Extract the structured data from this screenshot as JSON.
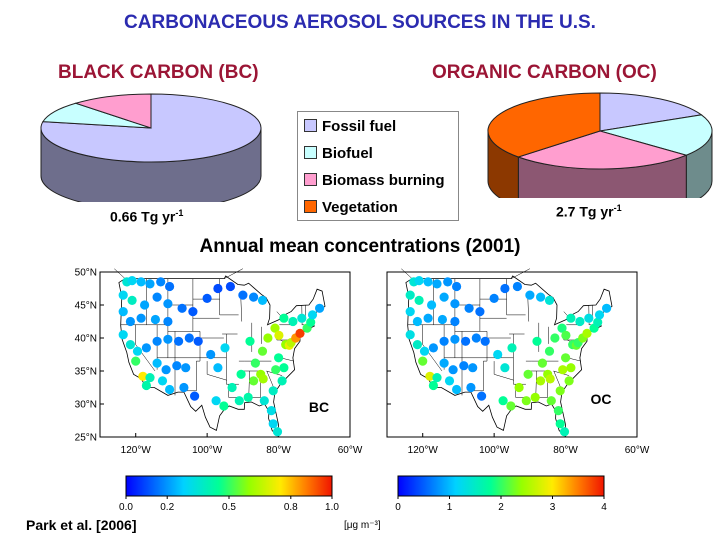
{
  "title": "CARBONACEOUS AEROSOL SOURCES IN THE U.S.",
  "bc": {
    "title": "BLACK CARBON (BC)",
    "total_value": "0.66 Tg yr",
    "total_exp": "-1"
  },
  "oc": {
    "title": "ORGANIC CARBON (OC)",
    "total_value": "2.7 Tg yr",
    "total_exp": "-1"
  },
  "legend": [
    {
      "label": "Fossil fuel",
      "color": "#c8c8ff"
    },
    {
      "label": "Biofuel",
      "color": "#c8ffff"
    },
    {
      "label": "Biomass burning",
      "color": "#ff9ecf"
    },
    {
      "label": "Vegetation",
      "color": "#ff6600"
    }
  ],
  "concentration_title": "Annual mean concentrations (2001)",
  "maps": [
    {
      "label": "BC",
      "lat_ticks": [
        "50°N",
        "45°N",
        "40°N",
        "35°N",
        "30°N",
        "25°N"
      ],
      "lon_ticks": [
        "120°W",
        "100°W",
        "80°W",
        "60°W"
      ]
    },
    {
      "label": "OC",
      "lat_ticks": [],
      "lon_ticks": [
        "120°W",
        "100°W",
        "80°W",
        "60°W"
      ]
    }
  ],
  "colorbars": [
    {
      "ticks": [
        "0.0",
        "0.2",
        "0.5",
        "0.8",
        "1.0"
      ]
    },
    {
      "ticks": [
        "0",
        "1",
        "2",
        "3",
        "4"
      ]
    }
  ],
  "unit_label": "[μg m⁻³]",
  "citation": "Park et al. [2006]",
  "chart_data": [
    {
      "type": "pie",
      "title": "BLACK CARBON (BC)",
      "categories": [
        "Fossil fuel",
        "Biofuel",
        "Biomass burning",
        "Vegetation"
      ],
      "values": [
        78,
        10,
        12,
        0
      ],
      "colors": [
        "#c8c8ff",
        "#c8ffff",
        "#ff9ecf",
        "#ff6600"
      ]
    },
    {
      "type": "pie",
      "title": "ORGANIC CARBON (OC)",
      "categories": [
        "Fossil fuel",
        "Biofuel",
        "Biomass burning",
        "Vegetation"
      ],
      "values": [
        18,
        18,
        27,
        37
      ],
      "colors": [
        "#c8c8ff",
        "#c8ffff",
        "#ff9ecf",
        "#ff6600"
      ]
    },
    {
      "type": "scatter",
      "title": "BC",
      "x_axis": "longitude (°W)",
      "y_axis": "latitude (°N)",
      "xlim": [
        -130,
        -60
      ],
      "ylim": [
        25,
        50
      ],
      "value_range": [
        0,
        1.0
      ],
      "points": [
        [
          -122.5,
          48.5,
          0.35
        ],
        [
          -121,
          48.7,
          0.3
        ],
        [
          -118.5,
          48.5,
          0.25
        ],
        [
          -116,
          48.2,
          0.22
        ],
        [
          -113,
          48.5,
          0.18
        ],
        [
          -110.5,
          47.8,
          0.15
        ],
        [
          -123.5,
          46.5,
          0.3
        ],
        [
          -121,
          45.7,
          0.38
        ],
        [
          -117.5,
          45,
          0.22
        ],
        [
          -114,
          46.2,
          0.18
        ],
        [
          -111,
          45.2,
          0.2
        ],
        [
          -123.5,
          44,
          0.25
        ],
        [
          -121.5,
          42.5,
          0.2
        ],
        [
          -118.5,
          43,
          0.2
        ],
        [
          -114.5,
          42.8,
          0.22
        ],
        [
          -111,
          42.5,
          0.18
        ],
        [
          -107,
          44.5,
          0.15
        ],
        [
          -104,
          44,
          0.12
        ],
        [
          -100,
          46,
          0.12
        ],
        [
          -97,
          47.5,
          0.1
        ],
        [
          -93.5,
          47.8,
          0.1
        ],
        [
          -90,
          46.5,
          0.15
        ],
        [
          -87,
          46.2,
          0.18
        ],
        [
          -84.5,
          45.7,
          0.25
        ],
        [
          -123.5,
          40.5,
          0.3
        ],
        [
          -121.5,
          39,
          0.35
        ],
        [
          -119.5,
          38,
          0.3
        ],
        [
          -117,
          38.5,
          0.2
        ],
        [
          -114,
          39.5,
          0.18
        ],
        [
          -111,
          39.8,
          0.2
        ],
        [
          -108,
          39.5,
          0.15
        ],
        [
          -105,
          40,
          0.15
        ],
        [
          -102.5,
          39.5,
          0.12
        ],
        [
          -120,
          36.5,
          0.5
        ],
        [
          -118,
          34.2,
          0.75
        ],
        [
          -116,
          34,
          0.4
        ],
        [
          -117,
          32.8,
          0.42
        ],
        [
          -114,
          36.2,
          0.25
        ],
        [
          -111.5,
          35.2,
          0.2
        ],
        [
          -108.5,
          35.8,
          0.18
        ],
        [
          -106,
          35.5,
          0.2
        ],
        [
          -110.5,
          32.2,
          0.25
        ],
        [
          -106.5,
          32.5,
          0.2
        ],
        [
          -103.5,
          31.2,
          0.12
        ],
        [
          -112.5,
          33.5,
          0.3
        ],
        [
          -99,
          37.5,
          0.2
        ],
        [
          -97,
          35.5,
          0.25
        ],
        [
          -95,
          38.5,
          0.3
        ],
        [
          -97.5,
          30.5,
          0.3
        ],
        [
          -95.3,
          29.7,
          0.45
        ],
        [
          -93,
          32.5,
          0.4
        ],
        [
          -90.5,
          34.5,
          0.45
        ],
        [
          -91,
          30.5,
          0.4
        ],
        [
          -88.5,
          31,
          0.42
        ],
        [
          -87,
          33.5,
          0.55
        ],
        [
          -85,
          34.5,
          0.6
        ],
        [
          -84.3,
          33.8,
          0.62
        ],
        [
          -86.5,
          36.2,
          0.5
        ],
        [
          -84.5,
          38,
          0.55
        ],
        [
          -88,
          39.5,
          0.45
        ],
        [
          -83,
          40,
          0.6
        ],
        [
          -81,
          41.5,
          0.62
        ],
        [
          -79.9,
          40.4,
          0.7
        ],
        [
          -78,
          39,
          0.6
        ],
        [
          -77,
          38.9,
          0.72
        ],
        [
          -76.5,
          39.3,
          0.65
        ],
        [
          -75.2,
          40,
          0.85
        ],
        [
          -74,
          40.7,
          0.95
        ],
        [
          -72,
          41.5,
          0.5
        ],
        [
          -71,
          42.4,
          0.45
        ],
        [
          -70.5,
          43.5,
          0.3
        ],
        [
          -68.5,
          44.5,
          0.22
        ],
        [
          -73.5,
          43,
          0.35
        ],
        [
          -76,
          42.5,
          0.4
        ],
        [
          -78.5,
          43,
          0.45
        ],
        [
          -80,
          37,
          0.45
        ],
        [
          -78.5,
          35.5,
          0.45
        ],
        [
          -80.8,
          35.2,
          0.5
        ],
        [
          -79,
          33.5,
          0.4
        ],
        [
          -81.5,
          32,
          0.38
        ],
        [
          -84,
          30.5,
          0.35
        ],
        [
          -82,
          29,
          0.32
        ],
        [
          -81.5,
          27,
          0.3
        ],
        [
          -80.3,
          25.8,
          0.35
        ]
      ]
    },
    {
      "type": "scatter",
      "title": "OC",
      "x_axis": "longitude (°W)",
      "y_axis": "latitude (°N)",
      "xlim": [
        -130,
        -60
      ],
      "ylim": [
        25,
        50
      ],
      "value_range": [
        0,
        4
      ],
      "points": [
        [
          -122.5,
          48.5,
          1.4
        ],
        [
          -121,
          48.7,
          1.2
        ],
        [
          -118.5,
          48.5,
          1.0
        ],
        [
          -116,
          48.2,
          0.9
        ],
        [
          -113,
          48.5,
          0.8
        ],
        [
          -110.5,
          47.8,
          0.7
        ],
        [
          -123.5,
          46.5,
          1.5
        ],
        [
          -121,
          45.7,
          1.6
        ],
        [
          -117.5,
          45,
          1.0
        ],
        [
          -114,
          46.2,
          0.9
        ],
        [
          -111,
          45.2,
          0.8
        ],
        [
          -123.5,
          44,
          1.2
        ],
        [
          -121.5,
          42.5,
          1.0
        ],
        [
          -118.5,
          43,
          0.9
        ],
        [
          -114.5,
          42.8,
          0.9
        ],
        [
          -111,
          42.5,
          0.7
        ],
        [
          -107,
          44.5,
          0.7
        ],
        [
          -104,
          44,
          0.6
        ],
        [
          -100,
          46,
          0.7
        ],
        [
          -97,
          47.5,
          0.6
        ],
        [
          -93.5,
          47.8,
          0.7
        ],
        [
          -90,
          46.5,
          0.9
        ],
        [
          -87,
          46.2,
          1.0
        ],
        [
          -84.5,
          45.7,
          1.4
        ],
        [
          -123.5,
          40.5,
          1.3
        ],
        [
          -121.5,
          39,
          1.5
        ],
        [
          -119.5,
          38,
          1.2
        ],
        [
          -117,
          38.5,
          0.8
        ],
        [
          -114,
          39.5,
          0.7
        ],
        [
          -111,
          39.8,
          0.8
        ],
        [
          -108,
          39.5,
          0.6
        ],
        [
          -105,
          40,
          0.7
        ],
        [
          -102.5,
          39.5,
          0.6
        ],
        [
          -120,
          36.5,
          2.2
        ],
        [
          -118,
          34.2,
          2.8
        ],
        [
          -116,
          34,
          1.6
        ],
        [
          -117,
          32.8,
          1.8
        ],
        [
          -114,
          36.2,
          0.9
        ],
        [
          -111.5,
          35.2,
          0.8
        ],
        [
          -108.5,
          35.8,
          0.7
        ],
        [
          -106,
          35.5,
          0.8
        ],
        [
          -110.5,
          32.2,
          1.0
        ],
        [
          -106.5,
          32.5,
          0.8
        ],
        [
          -103.5,
          31.2,
          0.6
        ],
        [
          -112.5,
          33.5,
          1.2
        ],
        [
          -99,
          37.5,
          1.2
        ],
        [
          -97,
          35.5,
          1.4
        ],
        [
          -95,
          38.5,
          1.6
        ],
        [
          -97.5,
          30.5,
          1.8
        ],
        [
          -95.3,
          29.7,
          2.2
        ],
        [
          -93,
          32.5,
          2.4
        ],
        [
          -90.5,
          34.5,
          2.2
        ],
        [
          -91,
          30.5,
          2.3
        ],
        [
          -88.5,
          31,
          2.4
        ],
        [
          -87,
          33.5,
          2.5
        ],
        [
          -85,
          34.5,
          2.4
        ],
        [
          -84.3,
          33.8,
          2.6
        ],
        [
          -86.5,
          36.2,
          2.2
        ],
        [
          -84.5,
          38,
          2.0
        ],
        [
          -88,
          39.5,
          1.8
        ],
        [
          -83,
          40,
          2.0
        ],
        [
          -81,
          41.5,
          1.9
        ],
        [
          -79.9,
          40.4,
          2.1
        ],
        [
          -78,
          39,
          2.0
        ],
        [
          -77,
          38.9,
          2.2
        ],
        [
          -76.5,
          39.3,
          2.0
        ],
        [
          -75.2,
          40,
          2.3
        ],
        [
          -74,
          40.7,
          2.5
        ],
        [
          -72,
          41.5,
          1.8
        ],
        [
          -71,
          42.4,
          1.6
        ],
        [
          -70.5,
          43.5,
          1.2
        ],
        [
          -68.5,
          44.5,
          1.0
        ],
        [
          -73.5,
          43,
          1.3
        ],
        [
          -76,
          42.5,
          1.5
        ],
        [
          -78.5,
          43,
          1.6
        ],
        [
          -80,
          37,
          2.2
        ],
        [
          -78.5,
          35.5,
          2.4
        ],
        [
          -80.8,
          35.2,
          2.5
        ],
        [
          -79,
          33.5,
          2.3
        ],
        [
          -81.5,
          32,
          2.3
        ],
        [
          -84,
          30.5,
          2.2
        ],
        [
          -82,
          29,
          2.0
        ],
        [
          -81.5,
          27,
          1.8
        ],
        [
          -80.3,
          25.8,
          1.6
        ]
      ]
    }
  ]
}
